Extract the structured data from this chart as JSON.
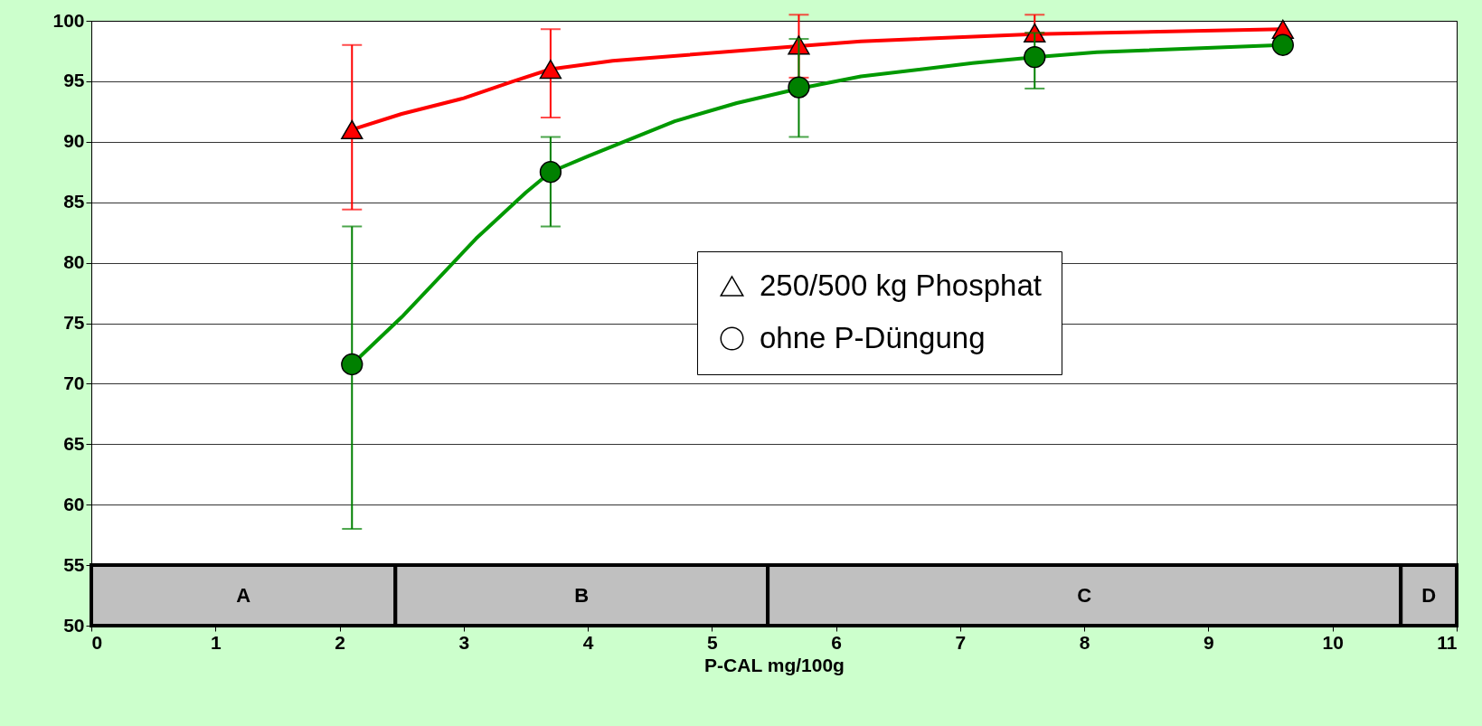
{
  "chart_data": {
    "type": "scatter",
    "xlabel": "P-CAL mg/100g",
    "x": [
      2.1,
      3.7,
      5.7,
      7.6,
      9.6
    ],
    "series": [
      {
        "name": "250/500 kg Phosphat",
        "color": "#ff0000",
        "marker": "triangle",
        "values": [
          91,
          96,
          98,
          99,
          99.3
        ],
        "errors": [
          [
            84.4,
            98
          ],
          [
            92,
            99.3
          ],
          [
            95.3,
            100.5
          ],
          [
            99,
            100.5
          ],
          null
        ]
      },
      {
        "name": "ohne P-Düngung",
        "color": "#008000",
        "marker": "circle",
        "values": [
          71.6,
          87.5,
          94.5,
          97,
          98
        ],
        "errors": [
          [
            58,
            83
          ],
          [
            83,
            90.4
          ],
          [
            90.4,
            98.5
          ],
          [
            94.4,
            99
          ],
          null
        ]
      },
      {
        "type": "line",
        "color": "#ff0000",
        "x": [
          2.1,
          2.5,
          3,
          3.4,
          3.7,
          4.2,
          5.7,
          6.2,
          7.6,
          9.6
        ],
        "values": [
          91,
          92.3,
          93.6,
          95,
          96,
          96.7,
          97.9,
          98.3,
          98.9,
          99.3
        ]
      },
      {
        "type": "line",
        "color": "#009900",
        "x": [
          2.1,
          2.5,
          3.1,
          3.5,
          3.7,
          4,
          4.7,
          5.2,
          5.7,
          6.2,
          7.1,
          7.6,
          8.1,
          9.6
        ],
        "values": [
          71.6,
          75.5,
          82,
          85.8,
          87.5,
          88.8,
          91.7,
          93.2,
          94.4,
          95.4,
          96.5,
          97,
          97.4,
          98
        ]
      }
    ],
    "bands": [
      {
        "axis": "x",
        "from": 0,
        "to": 2.45,
        "label": "A",
        "color": "#c0c0c0"
      },
      {
        "axis": "x",
        "from": 2.45,
        "to": 5.45,
        "label": "B",
        "color": "#c0c0c0"
      },
      {
        "axis": "x",
        "from": 5.45,
        "to": 10.55,
        "label": "C",
        "color": "#c0c0c0"
      },
      {
        "axis": "x",
        "from": 10.55,
        "to": 11,
        "label": "D",
        "color": "#c0c0c0"
      }
    ],
    "xlim": [
      0,
      11
    ],
    "xticks": [
      0,
      1,
      2,
      3,
      4,
      5,
      6,
      7,
      8,
      9,
      10,
      11
    ],
    "ylim": [
      50,
      100
    ],
    "yticks": [
      50,
      55,
      60,
      65,
      70,
      75,
      80,
      85,
      90,
      95,
      100
    ],
    "grid": "y",
    "legend": "right"
  }
}
